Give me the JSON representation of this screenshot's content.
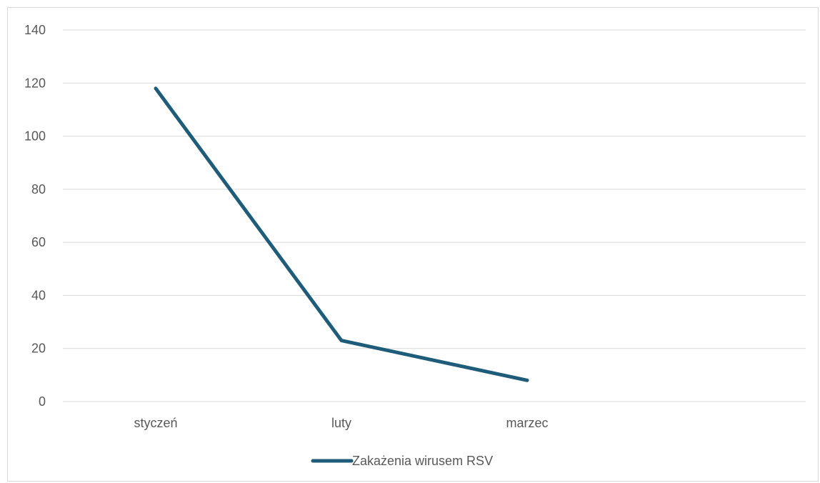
{
  "chart_data": {
    "type": "line",
    "categories": [
      "styczeń",
      "luty",
      "marzec"
    ],
    "series": [
      {
        "name": "Zakażenia wirusem RSV",
        "values": [
          118,
          23,
          8
        ],
        "color": "#1f5c7a"
      }
    ],
    "ylim": [
      0,
      140
    ],
    "yticks": [
      "0",
      "20",
      "40",
      "60",
      "80",
      "100",
      "120",
      "140"
    ],
    "grid": true,
    "legend_position": "bottom"
  }
}
